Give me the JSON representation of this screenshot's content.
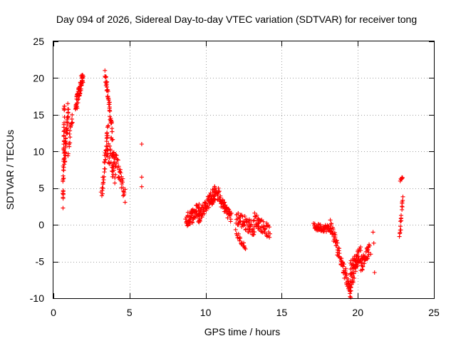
{
  "chart_data": {
    "type": "scatter",
    "title": "Day 094 of 2026, Sidereal Day-to-day VTEC variation (SDTVAR) for receiver tong",
    "xlabel": "GPS time / hours",
    "ylabel": "SDTVAR / TECUs",
    "xlim": [
      0,
      25
    ],
    "ylim": [
      -10,
      25
    ],
    "xticks": [
      0,
      5,
      10,
      15,
      20,
      25
    ],
    "yticks": [
      -10,
      -5,
      0,
      5,
      10,
      15,
      20,
      25
    ],
    "grid": true,
    "marker": "plus",
    "color": "#ff0000",
    "segments": [
      {
        "x0": 0.62,
        "x1": 0.72,
        "y0": 2.6,
        "y1": 16.5,
        "n": 40,
        "jitter": 0.8
      },
      {
        "x0": 0.72,
        "x1": 0.98,
        "y0": 8.0,
        "y1": 16.0,
        "n": 40,
        "jitter": 1.2
      },
      {
        "x0": 0.98,
        "x1": 1.25,
        "y0": 10.0,
        "y1": 15.0,
        "n": 18,
        "jitter": 0.8
      },
      {
        "x0": 1.45,
        "x1": 1.95,
        "y0": 16.0,
        "y1": 20.3,
        "n": 60,
        "jitter": 0.9
      },
      {
        "x0": 3.15,
        "x1": 3.6,
        "y0": 3.5,
        "y1": 13.5,
        "n": 35,
        "jitter": 1.0
      },
      {
        "x0": 3.4,
        "x1": 3.85,
        "y0": 20.7,
        "y1": 13.0,
        "n": 45,
        "jitter": 0.6
      },
      {
        "x0": 3.45,
        "x1": 4.05,
        "y0": 11.5,
        "y1": 6.5,
        "n": 35,
        "jitter": 1.5
      },
      {
        "x0": 3.8,
        "x1": 4.7,
        "y0": 11.0,
        "y1": 4.0,
        "n": 50,
        "jitter": 1.2
      },
      {
        "x0": 8.7,
        "x1": 9.6,
        "y0": 0.5,
        "y1": 2.2,
        "n": 60,
        "jitter": 1.0
      },
      {
        "x0": 9.5,
        "x1": 10.6,
        "y0": 1.0,
        "y1": 4.5,
        "n": 70,
        "jitter": 0.9
      },
      {
        "x0": 10.4,
        "x1": 10.9,
        "y0": 3.5,
        "y1": 4.3,
        "n": 25,
        "jitter": 0.8
      },
      {
        "x0": 10.9,
        "x1": 11.7,
        "y0": 3.5,
        "y1": 1.0,
        "n": 45,
        "jitter": 0.8
      },
      {
        "x0": 12.0,
        "x1": 12.6,
        "y0": -1.0,
        "y1": -3.3,
        "n": 20,
        "jitter": 0.4
      },
      {
        "x0": 12.0,
        "x1": 13.2,
        "y0": 1.0,
        "y1": -0.5,
        "n": 60,
        "jitter": 1.0
      },
      {
        "x0": 13.2,
        "x1": 14.2,
        "y0": 0.8,
        "y1": -1.0,
        "n": 50,
        "jitter": 0.9
      },
      {
        "x0": 17.1,
        "x1": 18.2,
        "y0": -0.3,
        "y1": -0.5,
        "n": 55,
        "jitter": 0.5
      },
      {
        "x0": 18.2,
        "x1": 19.6,
        "y0": 0.0,
        "y1": -9.5,
        "n": 80,
        "jitter": 0.9
      },
      {
        "x0": 19.4,
        "x1": 20.0,
        "y0": -9.5,
        "y1": -4.5,
        "n": 35,
        "jitter": 0.9
      },
      {
        "x0": 19.5,
        "x1": 20.2,
        "y0": -6.0,
        "y1": -3.8,
        "n": 45,
        "jitter": 1.0
      },
      {
        "x0": 20.2,
        "x1": 20.75,
        "y0": -5.5,
        "y1": -3.5,
        "n": 40,
        "jitter": 1.0
      },
      {
        "x0": 22.75,
        "x1": 22.95,
        "y0": -1.8,
        "y1": 3.8,
        "n": 18,
        "jitter": 0.6
      },
      {
        "x0": 22.8,
        "x1": 22.95,
        "y0": 6.0,
        "y1": 6.4,
        "n": 8,
        "jitter": 0.2
      }
    ],
    "points": [
      [
        5.8,
        11.0
      ],
      [
        5.8,
        6.5
      ],
      [
        5.8,
        5.2
      ],
      [
        21.0,
        -1.0
      ],
      [
        21.05,
        -2.5
      ],
      [
        21.1,
        -6.5
      ],
      [
        20.85,
        -4.0
      ]
    ]
  }
}
